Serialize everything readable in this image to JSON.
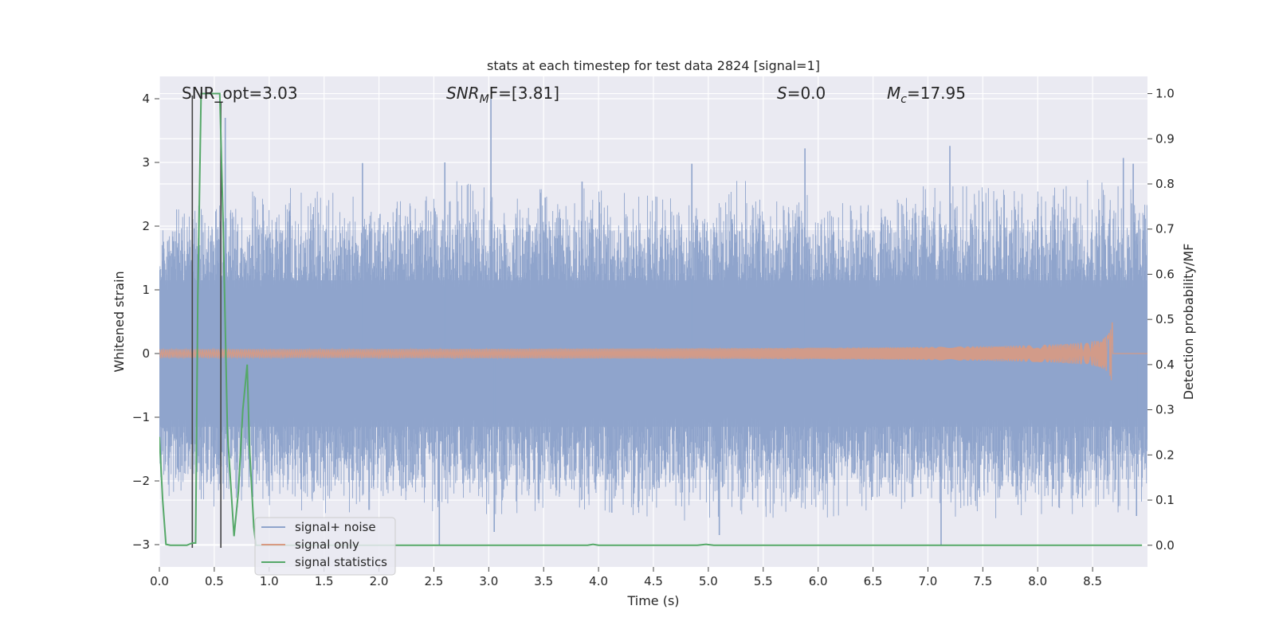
{
  "chart_data": {
    "type": "line",
    "title": "stats at each timestep for test data 2824 [signal=1]",
    "xlabel": "Time (s)",
    "ylabel_left": "Whitened strain",
    "ylabel_right": "Detection probability/MF",
    "xlim": [
      0.0,
      9.0
    ],
    "ylim_left": [
      -3.35,
      4.35
    ],
    "ylim_right": [
      -0.048,
      1.038
    ],
    "x_ticks": [
      "0.0",
      "0.5",
      "1.0",
      "1.5",
      "2.0",
      "2.5",
      "3.0",
      "3.5",
      "4.0",
      "4.5",
      "5.0",
      "5.5",
      "6.0",
      "6.5",
      "7.0",
      "7.5",
      "8.0",
      "8.5"
    ],
    "y_ticks_left": [
      "−3",
      "−2",
      "−1",
      "0",
      "1",
      "2",
      "3",
      "4"
    ],
    "y_ticks_right": [
      "0.0",
      "0.1",
      "0.2",
      "0.3",
      "0.4",
      "0.5",
      "0.6",
      "0.7",
      "0.8",
      "0.9",
      "1.0"
    ],
    "grid": true,
    "legend_position": "lower-left",
    "annotations": {
      "snr_opt": "SNR_opt=3.03",
      "snr_mf_main": "SNR",
      "snr_mf_sub": "M",
      "snr_mf_tail": "F=[3.81]",
      "s_main": "S",
      "s_tail": "=0.0",
      "mc_main": "M",
      "mc_sub": "c",
      "mc_tail": "=17.95"
    },
    "series": [
      {
        "name": "signal+ noise",
        "color": "#8fa4cc",
        "kind": "whitened strain noise band",
        "envelope_upper": [
          2.1,
          2.3,
          2.5,
          2.4,
          2.3,
          2.6,
          2.4,
          2.5,
          2.4,
          2.3,
          2.6,
          2.4,
          2.2,
          2.5,
          2.5,
          2.4,
          2.6,
          2.4
        ],
        "envelope_lower": [
          -2.1,
          -2.3,
          -2.3,
          -2.4,
          -2.3,
          -2.4,
          -2.4,
          -2.3,
          -2.4,
          -2.5,
          -2.4,
          -2.5,
          -2.4,
          -2.3,
          -2.5,
          -2.4,
          -2.4,
          -2.4
        ],
        "peaks": [
          {
            "x": 0.6,
            "y": 3.7
          },
          {
            "x": 1.85,
            "y": 2.99
          },
          {
            "x": 2.6,
            "y": 3.0
          },
          {
            "x": 3.02,
            "y": 4.0
          },
          {
            "x": 3.85,
            "y": 2.7
          },
          {
            "x": 4.85,
            "y": 2.98
          },
          {
            "x": 5.88,
            "y": 3.22
          },
          {
            "x": 7.2,
            "y": 3.26
          },
          {
            "x": 8.78,
            "y": 3.07
          },
          {
            "x": 8.87,
            "y": 2.98
          },
          {
            "x": 0.3,
            "y": -3.0
          },
          {
            "x": 2.55,
            "y": -3.0
          },
          {
            "x": 3.05,
            "y": -2.8
          },
          {
            "x": 5.1,
            "y": -2.85
          },
          {
            "x": 7.12,
            "y": -3.0
          },
          {
            "x": 8.9,
            "y": -2.55
          }
        ]
      },
      {
        "name": "signal only",
        "color": "#d99a82",
        "kind": "chirp",
        "t_merger": 8.68,
        "peak_amplitude": 0.6
      },
      {
        "name": "signal statistics",
        "color": "#55a868",
        "axis": "right",
        "x": [
          0.0,
          0.03,
          0.06,
          0.1,
          0.2,
          0.25,
          0.3,
          0.33,
          0.35,
          0.38,
          0.42,
          0.45,
          0.5,
          0.55,
          0.58,
          0.62,
          0.68,
          0.72,
          0.76,
          0.8,
          0.82,
          0.86,
          0.88,
          0.9,
          1.0,
          1.5,
          2.0,
          2.5,
          3.0,
          3.5,
          3.9,
          3.95,
          4.0,
          4.5,
          4.9,
          4.98,
          5.05,
          5.5,
          6.0,
          6.5,
          7.0,
          7.5,
          8.0,
          8.5,
          8.95
        ],
        "y": [
          0.24,
          0.1,
          0.002,
          0.0,
          0.0,
          0.0,
          0.005,
          0.005,
          0.55,
          1.0,
          1.0,
          1.0,
          1.0,
          1.0,
          0.72,
          0.25,
          0.02,
          0.12,
          0.3,
          0.4,
          0.22,
          0.04,
          0.0,
          0.0,
          0.0,
          0.0,
          0.0,
          0.0,
          0.0,
          0.0,
          0.0,
          0.002,
          0.0,
          0.0,
          0.0,
          0.002,
          0.0,
          0.0,
          0.0,
          0.0,
          0.0,
          0.0,
          0.0,
          0.0,
          0.0
        ]
      }
    ],
    "vertical_markers": [
      {
        "x": 0.3,
        "y_top": 4.05,
        "y_bottom": -3.05,
        "color": "#444444"
      },
      {
        "x": 0.56,
        "y_top": 3.95,
        "y_bottom": -3.05,
        "color": "#444444"
      }
    ]
  }
}
